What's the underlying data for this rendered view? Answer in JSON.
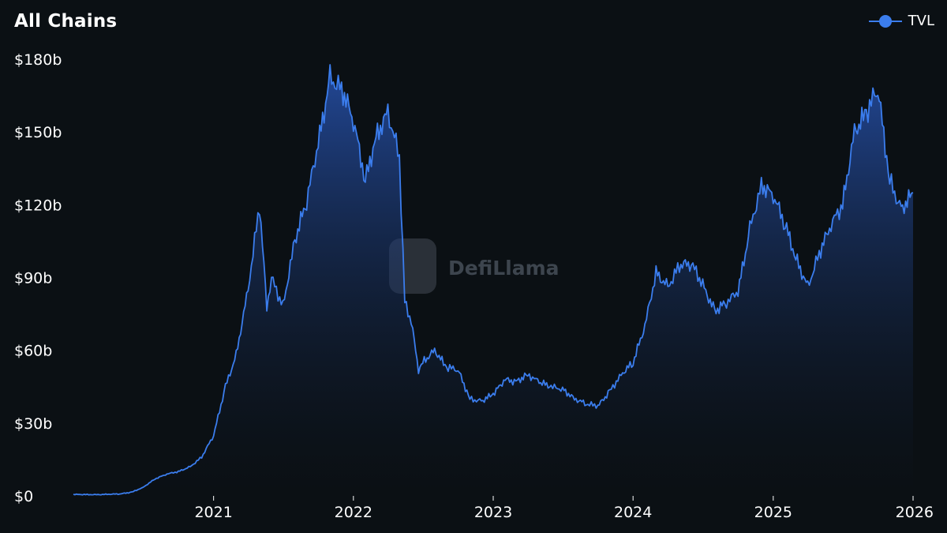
{
  "header": {
    "title": "All Chains"
  },
  "watermark": {
    "text": "DefiLlama"
  },
  "colors": {
    "series": "#3b7ded",
    "background": "#0b1014",
    "fill_top": "#2a5bc4"
  },
  "chart_data": {
    "type": "area",
    "title": "All Chains",
    "xlabel": "",
    "ylabel": "",
    "y_unit": "USD billions",
    "ylim": [
      0,
      180
    ],
    "yticks": [
      0,
      30,
      60,
      90,
      120,
      150,
      180
    ],
    "ytick_labels": [
      "$0",
      "$30b",
      "$60b",
      "$90b",
      "$120b",
      "$150b",
      "$180b"
    ],
    "xlim": [
      "2020-01-01",
      "2026-01-01"
    ],
    "xticks": [
      "2021-01-01",
      "2022-01-01",
      "2023-01-01",
      "2024-01-01",
      "2025-01-01",
      "2026-01-01"
    ],
    "xtick_labels": [
      "2021",
      "2022",
      "2023",
      "2024",
      "2025",
      "2026"
    ],
    "grid": false,
    "legend_position": "top-right",
    "series": [
      {
        "name": "TVL",
        "points": [
          [
            "2020-01-01",
            0.6
          ],
          [
            "2020-03-01",
            0.5
          ],
          [
            "2020-05-01",
            0.8
          ],
          [
            "2020-06-01",
            1.5
          ],
          [
            "2020-07-01",
            3.5
          ],
          [
            "2020-08-01",
            7
          ],
          [
            "2020-09-01",
            9
          ],
          [
            "2020-10-01",
            10
          ],
          [
            "2020-11-01",
            12
          ],
          [
            "2020-12-01",
            16
          ],
          [
            "2021-01-01",
            25
          ],
          [
            "2021-02-01",
            45
          ],
          [
            "2021-03-01",
            58
          ],
          [
            "2021-04-01",
            85
          ],
          [
            "2021-05-01",
            120
          ],
          [
            "2021-05-20",
            78
          ],
          [
            "2021-06-01",
            90
          ],
          [
            "2021-07-01",
            78
          ],
          [
            "2021-08-01",
            105
          ],
          [
            "2021-09-01",
            122
          ],
          [
            "2021-10-01",
            145
          ],
          [
            "2021-11-01",
            172
          ],
          [
            "2021-12-01",
            168
          ],
          [
            "2022-01-01",
            155
          ],
          [
            "2022-02-01",
            130
          ],
          [
            "2022-03-01",
            148
          ],
          [
            "2022-04-01",
            158
          ],
          [
            "2022-05-01",
            140
          ],
          [
            "2022-05-15",
            80
          ],
          [
            "2022-06-01",
            72
          ],
          [
            "2022-06-20",
            52
          ],
          [
            "2022-07-01",
            55
          ],
          [
            "2022-08-01",
            60
          ],
          [
            "2022-09-01",
            53
          ],
          [
            "2022-10-01",
            52
          ],
          [
            "2022-11-01",
            40
          ],
          [
            "2022-12-01",
            39
          ],
          [
            "2023-01-01",
            42
          ],
          [
            "2023-02-01",
            48
          ],
          [
            "2023-03-01",
            47
          ],
          [
            "2023-04-01",
            50
          ],
          [
            "2023-05-01",
            47
          ],
          [
            "2023-06-01",
            45
          ],
          [
            "2023-07-01",
            44
          ],
          [
            "2023-08-01",
            40
          ],
          [
            "2023-09-01",
            38
          ],
          [
            "2023-10-01",
            37
          ],
          [
            "2023-11-01",
            43
          ],
          [
            "2023-12-01",
            50
          ],
          [
            "2024-01-01",
            55
          ],
          [
            "2024-02-01",
            70
          ],
          [
            "2024-03-01",
            92
          ],
          [
            "2024-04-01",
            86
          ],
          [
            "2024-05-01",
            95
          ],
          [
            "2024-06-01",
            96
          ],
          [
            "2024-07-01",
            87
          ],
          [
            "2024-08-01",
            76
          ],
          [
            "2024-09-01",
            80
          ],
          [
            "2024-10-01",
            84
          ],
          [
            "2024-11-01",
            110
          ],
          [
            "2024-12-01",
            128
          ],
          [
            "2025-01-01",
            124
          ],
          [
            "2025-02-01",
            112
          ],
          [
            "2025-03-01",
            98
          ],
          [
            "2025-04-01",
            86
          ],
          [
            "2025-05-01",
            100
          ],
          [
            "2025-06-01",
            112
          ],
          [
            "2025-07-01",
            120
          ],
          [
            "2025-08-01",
            150
          ],
          [
            "2025-09-01",
            158
          ],
          [
            "2025-10-01",
            168
          ],
          [
            "2025-11-01",
            130
          ],
          [
            "2025-12-01",
            118
          ],
          [
            "2026-01-01",
            125
          ]
        ]
      }
    ]
  }
}
